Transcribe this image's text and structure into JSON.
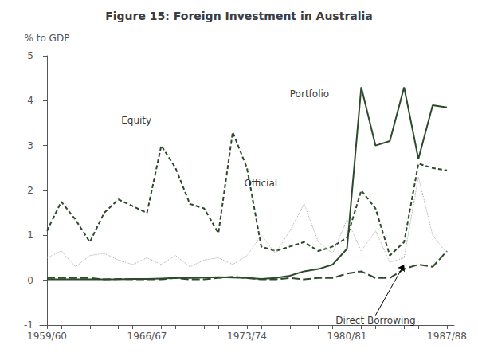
{
  "chart_data": {
    "type": "line",
    "title": "Figure 15: Foreign Investment in Australia",
    "ylabel": "% to GDP",
    "categories": [
      "1959/60",
      null,
      null,
      null,
      null,
      null,
      null,
      "1966/67",
      null,
      null,
      null,
      null,
      null,
      null,
      "1973/74",
      null,
      null,
      null,
      null,
      null,
      null,
      "1980/81",
      null,
      null,
      null,
      null,
      null,
      null,
      "1987/88"
    ],
    "ylim": [
      -1,
      5
    ],
    "yticks": [
      -1,
      0,
      1,
      2,
      3,
      4,
      5
    ],
    "grid": false,
    "series": [
      {
        "name": "Portfolio",
        "color": "#2d4a2d",
        "line_style": "solid",
        "values": [
          0.02,
          0.02,
          0.02,
          0.02,
          0.02,
          0.02,
          0.03,
          0.03,
          0.04,
          0.05,
          0.05,
          0.06,
          0.07,
          0.06,
          0.05,
          0.03,
          0.05,
          0.1,
          0.2,
          0.25,
          0.35,
          0.7,
          4.3,
          3.0,
          3.1,
          4.3,
          2.7,
          3.9,
          3.85
        ]
      },
      {
        "name": "Equity",
        "color": "#2d4a2d",
        "line_style": "dashed",
        "values": [
          1.1,
          1.75,
          1.35,
          0.85,
          1.5,
          1.8,
          1.65,
          1.5,
          3.0,
          2.5,
          1.7,
          1.6,
          1.05,
          3.3,
          2.5,
          0.75,
          0.65,
          0.75,
          0.85,
          0.65,
          0.75,
          0.95,
          2.0,
          1.6,
          0.55,
          0.85,
          2.6,
          2.5,
          2.45
        ]
      },
      {
        "name": "Official",
        "color": "#aaaaaa",
        "line_style": "dotted",
        "values": [
          0.5,
          0.65,
          0.3,
          0.55,
          0.6,
          0.45,
          0.35,
          0.5,
          0.35,
          0.55,
          0.3,
          0.45,
          0.5,
          0.35,
          0.55,
          1.0,
          0.6,
          1.1,
          1.7,
          0.85,
          0.6,
          1.35,
          0.65,
          1.1,
          0.4,
          0.5,
          2.3,
          1.0,
          0.6
        ]
      },
      {
        "name": "Direct Borrowing",
        "color": "#2d4a2d",
        "line_style": "long_dashed",
        "values": [
          0.05,
          0.05,
          0.05,
          0.05,
          0.02,
          0.03,
          0.02,
          0.02,
          0.02,
          0.05,
          0.02,
          0.02,
          0.05,
          0.08,
          0.05,
          0.02,
          0.02,
          0.05,
          0.02,
          0.05,
          0.05,
          0.15,
          0.2,
          0.05,
          0.05,
          0.25,
          0.35,
          0.3,
          0.65
        ]
      }
    ],
    "annotations": [
      {
        "text": "Portfolio",
        "x": 17.0,
        "y": 4.05
      },
      {
        "text": "Equity",
        "x": 5.2,
        "y": 3.45
      },
      {
        "text": "Official",
        "x": 13.8,
        "y": 2.05
      },
      {
        "text": "Direct Borrowing",
        "x": 23.0,
        "y": -0.78,
        "arrow_x": 25,
        "arrow_y": 0.35
      }
    ]
  }
}
